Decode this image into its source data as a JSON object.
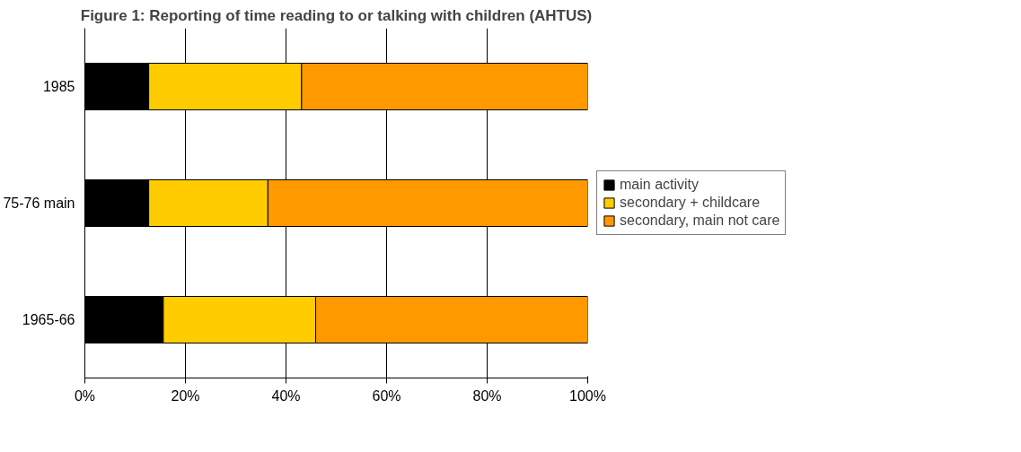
{
  "chart_data": {
    "type": "bar",
    "orientation": "horizontal",
    "stacked": true,
    "title": "Figure 1: Reporting of time reading to or talking with children (AHTUS)",
    "categories": [
      "1985",
      "75-76 main",
      "1965-66"
    ],
    "series": [
      {
        "name": "main activity",
        "color": "#000000",
        "values": [
          12.7,
          12.7,
          15.6
        ]
      },
      {
        "name": "secondary + childcare",
        "color": "#ffcc00",
        "values": [
          30.4,
          23.7,
          30.3
        ]
      },
      {
        "name": "secondary, main not care",
        "color": "#ff9900",
        "values": [
          56.9,
          63.6,
          54.1
        ]
      }
    ],
    "xlim": [
      0,
      100
    ],
    "xticks": [
      {
        "value": 0,
        "label": "0%"
      },
      {
        "value": 20,
        "label": "20%"
      },
      {
        "value": 40,
        "label": "40%"
      },
      {
        "value": 60,
        "label": "60%"
      },
      {
        "value": 80,
        "label": "80%"
      },
      {
        "value": 100,
        "label": "100%"
      }
    ],
    "grid": "x",
    "legend": "right"
  }
}
